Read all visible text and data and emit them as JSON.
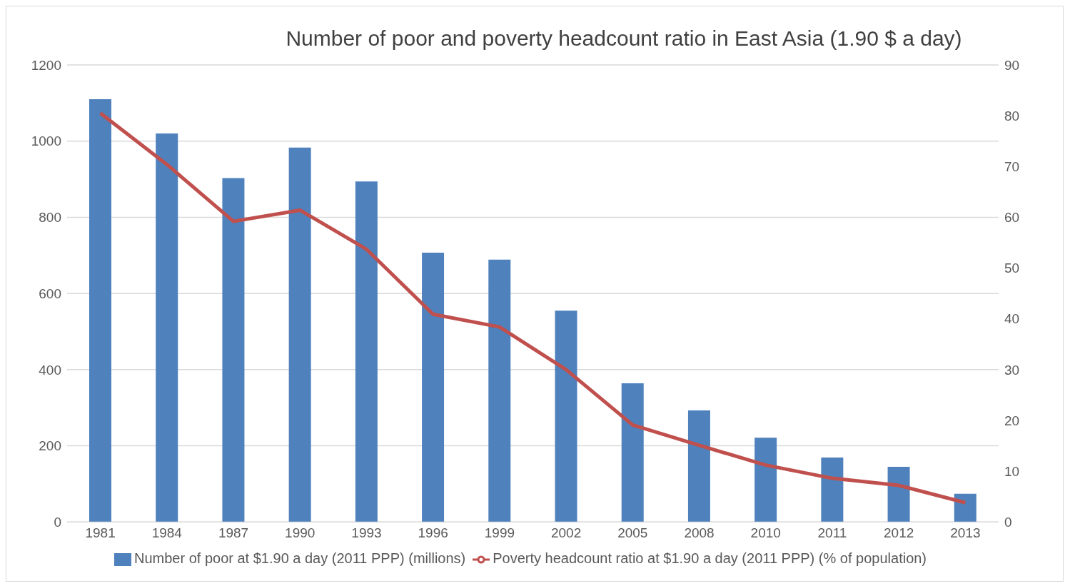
{
  "chart_data": {
    "type": "bar",
    "title": "Number of poor and poverty headcount ratio in East Asia (1.90 $ a day)",
    "categories": [
      "1981",
      "1984",
      "1987",
      "1990",
      "1993",
      "1996",
      "1999",
      "2002",
      "2005",
      "2008",
      "2010",
      "2011",
      "2012",
      "2013"
    ],
    "series": [
      {
        "name": "Number of poor at $1.90 a day (2011 PPP) (millions)",
        "color": "#4f81bd",
        "values": [
          1110,
          1020,
          903,
          983,
          894,
          707,
          689,
          555,
          364,
          293,
          221,
          169,
          145,
          74
        ]
      },
      {
        "name": "Poverty headcount ratio at $1.90 a day (2011 PPP) (% of population)",
        "type": "line",
        "axis": "y2",
        "color": "#c0504d",
        "values": [
          80.5,
          70.4,
          59.2,
          61.4,
          53.7,
          40.9,
          38.4,
          30.0,
          19.1,
          15.1,
          11.2,
          8.6,
          7.2,
          3.8
        ]
      }
    ],
    "ylim": [
      0,
      1200
    ],
    "yticks": [
      0,
      200,
      400,
      600,
      800,
      1000,
      1200
    ],
    "y2lim": [
      0,
      90
    ],
    "y2ticks": [
      0,
      10,
      20,
      30,
      40,
      50,
      60,
      70,
      80,
      90
    ],
    "grid": "y",
    "legend": "bottom",
    "marker": "none"
  }
}
